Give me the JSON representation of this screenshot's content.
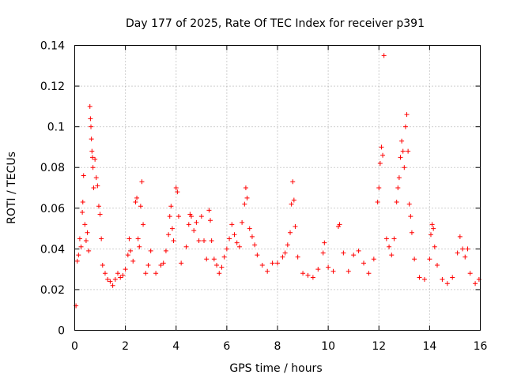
{
  "chart_data": {
    "type": "scatter",
    "title": "Day 177 of 2025, Rate Of TEC Index for receiver p391",
    "xlabel": "GPS time / hours",
    "ylabel": "ROTI / TECUs",
    "xlim": [
      0,
      16
    ],
    "ylim": [
      0,
      0.14
    ],
    "xticks": [
      0,
      2,
      4,
      6,
      8,
      10,
      12,
      14,
      16
    ],
    "xtick_labels": [
      "0",
      "2",
      "4",
      "6",
      "8",
      "10",
      "12",
      "14",
      "16"
    ],
    "yticks": [
      0,
      0.02,
      0.04,
      0.06,
      0.08,
      0.1,
      0.12,
      0.14
    ],
    "ytick_labels": [
      "0",
      "0.02",
      "0.04",
      "0.06",
      "0.08",
      "0.1",
      "0.12",
      "0.14"
    ],
    "grid": true,
    "marker": "+",
    "color": "#ff0000",
    "series": [
      {
        "name": "ROTI",
        "points": [
          [
            0.05,
            0.012
          ],
          [
            0.1,
            0.034
          ],
          [
            0.15,
            0.037
          ],
          [
            0.2,
            0.045
          ],
          [
            0.25,
            0.041
          ],
          [
            0.3,
            0.058
          ],
          [
            0.32,
            0.063
          ],
          [
            0.35,
            0.076
          ],
          [
            0.4,
            0.052
          ],
          [
            0.45,
            0.044
          ],
          [
            0.5,
            0.048
          ],
          [
            0.55,
            0.039
          ],
          [
            0.6,
            0.11
          ],
          [
            0.62,
            0.104
          ],
          [
            0.64,
            0.1
          ],
          [
            0.66,
            0.094
          ],
          [
            0.68,
            0.088
          ],
          [
            0.7,
            0.085
          ],
          [
            0.72,
            0.08
          ],
          [
            0.75,
            0.07
          ],
          [
            0.8,
            0.084
          ],
          [
            0.85,
            0.075
          ],
          [
            0.9,
            0.071
          ],
          [
            0.95,
            0.061
          ],
          [
            1.0,
            0.057
          ],
          [
            1.05,
            0.045
          ],
          [
            1.1,
            0.032
          ],
          [
            1.2,
            0.028
          ],
          [
            1.3,
            0.025
          ],
          [
            1.4,
            0.024
          ],
          [
            1.5,
            0.022
          ],
          [
            1.6,
            0.025
          ],
          [
            1.7,
            0.028
          ],
          [
            1.8,
            0.026
          ],
          [
            1.9,
            0.027
          ],
          [
            2.0,
            0.03
          ],
          [
            2.1,
            0.037
          ],
          [
            2.15,
            0.045
          ],
          [
            2.2,
            0.039
          ],
          [
            2.3,
            0.034
          ],
          [
            2.4,
            0.063
          ],
          [
            2.45,
            0.065
          ],
          [
            2.5,
            0.045
          ],
          [
            2.55,
            0.041
          ],
          [
            2.6,
            0.061
          ],
          [
            2.65,
            0.073
          ],
          [
            2.7,
            0.052
          ],
          [
            2.8,
            0.028
          ],
          [
            2.9,
            0.032
          ],
          [
            3.0,
            0.039
          ],
          [
            3.2,
            0.028
          ],
          [
            3.4,
            0.032
          ],
          [
            3.5,
            0.033
          ],
          [
            3.6,
            0.039
          ],
          [
            3.7,
            0.047
          ],
          [
            3.75,
            0.056
          ],
          [
            3.8,
            0.061
          ],
          [
            3.85,
            0.05
          ],
          [
            3.9,
            0.044
          ],
          [
            4.0,
            0.07
          ],
          [
            4.05,
            0.068
          ],
          [
            4.1,
            0.056
          ],
          [
            4.2,
            0.033
          ],
          [
            4.4,
            0.041
          ],
          [
            4.5,
            0.052
          ],
          [
            4.55,
            0.057
          ],
          [
            4.6,
            0.056
          ],
          [
            4.7,
            0.049
          ],
          [
            4.8,
            0.053
          ],
          [
            4.9,
            0.044
          ],
          [
            5.0,
            0.056
          ],
          [
            5.1,
            0.044
          ],
          [
            5.2,
            0.035
          ],
          [
            5.3,
            0.059
          ],
          [
            5.35,
            0.054
          ],
          [
            5.4,
            0.044
          ],
          [
            5.5,
            0.035
          ],
          [
            5.6,
            0.032
          ],
          [
            5.7,
            0.028
          ],
          [
            5.8,
            0.031
          ],
          [
            5.9,
            0.036
          ],
          [
            6.0,
            0.04
          ],
          [
            6.1,
            0.045
          ],
          [
            6.2,
            0.052
          ],
          [
            6.3,
            0.047
          ],
          [
            6.4,
            0.043
          ],
          [
            6.5,
            0.041
          ],
          [
            6.6,
            0.053
          ],
          [
            6.7,
            0.062
          ],
          [
            6.75,
            0.07
          ],
          [
            6.8,
            0.065
          ],
          [
            6.9,
            0.05
          ],
          [
            7.0,
            0.046
          ],
          [
            7.1,
            0.042
          ],
          [
            7.2,
            0.037
          ],
          [
            7.4,
            0.032
          ],
          [
            7.6,
            0.029
          ],
          [
            7.8,
            0.033
          ],
          [
            8.0,
            0.033
          ],
          [
            8.2,
            0.036
          ],
          [
            8.3,
            0.038
          ],
          [
            8.4,
            0.042
          ],
          [
            8.5,
            0.048
          ],
          [
            8.55,
            0.062
          ],
          [
            8.6,
            0.073
          ],
          [
            8.65,
            0.064
          ],
          [
            8.7,
            0.051
          ],
          [
            8.8,
            0.036
          ],
          [
            9.0,
            0.028
          ],
          [
            9.2,
            0.027
          ],
          [
            9.4,
            0.026
          ],
          [
            9.6,
            0.03
          ],
          [
            9.8,
            0.038
          ],
          [
            9.85,
            0.043
          ],
          [
            10.0,
            0.031
          ],
          [
            10.2,
            0.029
          ],
          [
            10.4,
            0.051
          ],
          [
            10.45,
            0.052
          ],
          [
            10.6,
            0.038
          ],
          [
            10.8,
            0.029
          ],
          [
            11.0,
            0.037
          ],
          [
            11.2,
            0.039
          ],
          [
            11.4,
            0.033
          ],
          [
            11.6,
            0.028
          ],
          [
            11.8,
            0.035
          ],
          [
            11.95,
            0.063
          ],
          [
            12.0,
            0.07
          ],
          [
            12.05,
            0.082
          ],
          [
            12.1,
            0.09
          ],
          [
            12.15,
            0.086
          ],
          [
            12.2,
            0.135
          ],
          [
            12.3,
            0.045
          ],
          [
            12.4,
            0.041
          ],
          [
            12.5,
            0.037
          ],
          [
            12.6,
            0.045
          ],
          [
            12.7,
            0.063
          ],
          [
            12.75,
            0.07
          ],
          [
            12.8,
            0.075
          ],
          [
            12.85,
            0.085
          ],
          [
            12.9,
            0.093
          ],
          [
            12.95,
            0.088
          ],
          [
            13.0,
            0.08
          ],
          [
            13.05,
            0.1
          ],
          [
            13.1,
            0.106
          ],
          [
            13.15,
            0.088
          ],
          [
            13.2,
            0.062
          ],
          [
            13.25,
            0.056
          ],
          [
            13.3,
            0.048
          ],
          [
            13.4,
            0.035
          ],
          [
            13.6,
            0.026
          ],
          [
            13.8,
            0.025
          ],
          [
            14.0,
            0.035
          ],
          [
            14.05,
            0.047
          ],
          [
            14.1,
            0.052
          ],
          [
            14.15,
            0.05
          ],
          [
            14.2,
            0.041
          ],
          [
            14.3,
            0.032
          ],
          [
            14.5,
            0.025
          ],
          [
            14.7,
            0.023
          ],
          [
            14.9,
            0.026
          ],
          [
            15.1,
            0.038
          ],
          [
            15.2,
            0.046
          ],
          [
            15.3,
            0.04
          ],
          [
            15.4,
            0.036
          ],
          [
            15.5,
            0.04
          ],
          [
            15.6,
            0.028
          ],
          [
            15.8,
            0.023
          ],
          [
            15.95,
            0.025
          ]
        ]
      }
    ]
  }
}
